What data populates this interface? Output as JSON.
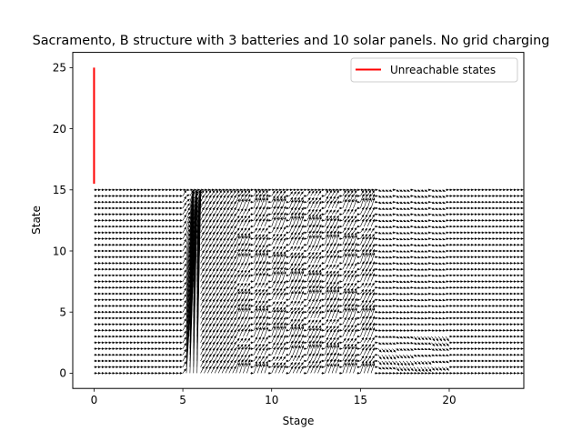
{
  "chart_data": {
    "type": "quiver",
    "title": "Sacramento, B structure with 3 batteries and 10 solar panels. No grid charging",
    "xlabel": "Stage",
    "ylabel": "State",
    "xlim": [
      -1.2,
      24.2
    ],
    "ylim": [
      -1.25,
      26.25
    ],
    "xticks": [
      0,
      5,
      10,
      15,
      20
    ],
    "yticks": [
      0,
      5,
      10,
      15,
      20,
      25
    ],
    "x_tick_labels": [
      "0",
      "5",
      "10",
      "15",
      "20"
    ],
    "y_tick_labels": [
      "0",
      "5",
      "10",
      "15",
      "20",
      "25"
    ],
    "grid": false,
    "legend": {
      "location": "upper right",
      "entries": [
        {
          "label": "Unreachable states",
          "color": "#ff0000"
        }
      ]
    },
    "unreachable_states_line": {
      "x": 0,
      "y_from": 15.5,
      "y_to": 25,
      "color": "#ff0000"
    },
    "vector_field": {
      "stage_step": 0.2,
      "state_step": 0.5,
      "state_min": 0,
      "state_max": 15,
      "arrow_color": "#000000",
      "segments": [
        {
          "stages": [
            0,
            5
          ],
          "behavior": "flat"
        },
        {
          "stages": [
            5,
            6
          ],
          "behavior": "rise_to_top"
        },
        {
          "stages": [
            6,
            8
          ],
          "behavior": "charge_slope"
        },
        {
          "stages": [
            8,
            16
          ],
          "behavior": "mixed_charge"
        },
        {
          "stages": [
            16,
            20
          ],
          "behavior": "discharge"
        },
        {
          "stages": [
            20,
            24
          ],
          "behavior": "flat"
        }
      ]
    }
  }
}
